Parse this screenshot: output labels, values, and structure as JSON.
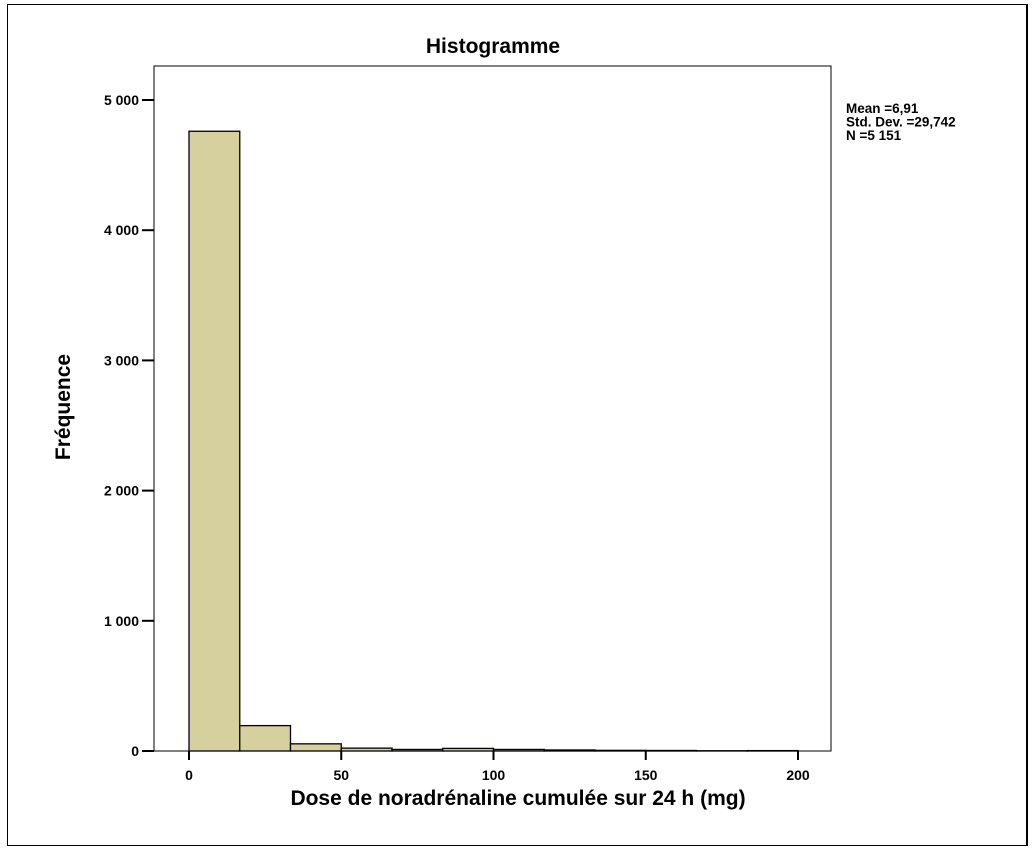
{
  "chart_data": {
    "type": "bar",
    "subtype": "histogram",
    "title": "Histogramme",
    "xlabel": "Dose de noradrénaline cumulée sur 24 h (mg)",
    "ylabel": "Fréquence",
    "xlim": [
      -10,
      210
    ],
    "ylim": [
      0,
      5250
    ],
    "x_ticks": [
      0,
      50,
      100,
      150,
      200
    ],
    "x_tick_labels": [
      "0",
      "50",
      "100",
      "150",
      "200"
    ],
    "y_ticks": [
      0,
      1000,
      2000,
      3000,
      4000,
      5000
    ],
    "y_tick_labels": [
      "0",
      "1 000",
      "2 000",
      "3 000",
      "4 000",
      "5 000"
    ],
    "bin_width": 16.67,
    "bins": [
      {
        "start": 0,
        "end": 16.67,
        "count": 4760
      },
      {
        "start": 16.67,
        "end": 33.33,
        "count": 195
      },
      {
        "start": 33.33,
        "end": 50,
        "count": 55
      },
      {
        "start": 50,
        "end": 66.67,
        "count": 22
      },
      {
        "start": 66.67,
        "end": 83.33,
        "count": 12
      },
      {
        "start": 83.33,
        "end": 100,
        "count": 20
      },
      {
        "start": 100,
        "end": 116.67,
        "count": 12
      },
      {
        "start": 116.67,
        "end": 133.33,
        "count": 8
      },
      {
        "start": 133.33,
        "end": 150,
        "count": 5
      },
      {
        "start": 150,
        "end": 166.67,
        "count": 4
      },
      {
        "start": 166.67,
        "end": 183.33,
        "count": 2
      },
      {
        "start": 183.33,
        "end": 200,
        "count": 3
      }
    ],
    "bar_color": "#d6cf9e",
    "grid": false,
    "stats": [
      {
        "label": "Mean =",
        "value": "6,91"
      },
      {
        "label": "Std. Dev. =",
        "value": "29,742"
      },
      {
        "label": "N =",
        "value": "5 151"
      }
    ]
  }
}
